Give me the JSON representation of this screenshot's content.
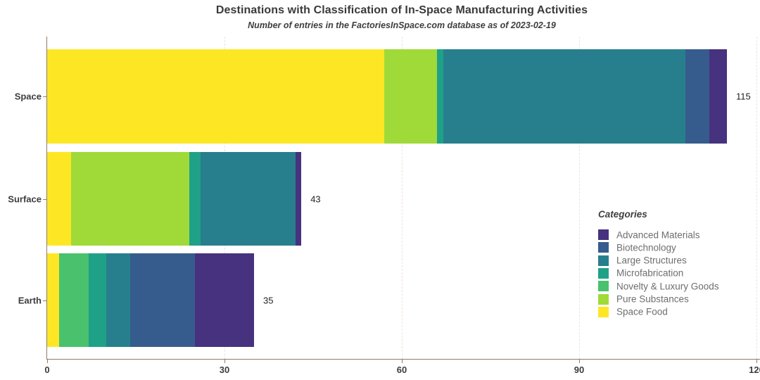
{
  "title": "Destinations with Classification of In-Space Manufacturing Activities",
  "subtitle": "Number of entries in the FactoriesInSpace.com database as of 2023-02-19",
  "legend": {
    "title": "Categories",
    "position": "right-inside"
  },
  "colors": {
    "background": "#ffffff",
    "axis_line": "#8c7b6e",
    "gridline": "#efe3d9",
    "title_text": "#3a3a3a",
    "axis_text": "#3d3d3d",
    "legend_text": "#6e6e6e",
    "value_text": "#1f1f1f"
  },
  "chart_data": {
    "type": "bar",
    "orientation": "horizontal",
    "stacked": true,
    "title": "Destinations with Classification of In-Space Manufacturing Activities",
    "subtitle": "Number of entries in the FactoriesInSpace.com database as of 2023-02-19",
    "categories": [
      "Space",
      "Surface",
      "Earth"
    ],
    "totals": [
      115,
      43,
      35
    ],
    "series": [
      {
        "name": "Advanced Materials",
        "color": "#46327E",
        "values": [
          3,
          1,
          10
        ]
      },
      {
        "name": "Biotechnology",
        "color": "#365C8D",
        "values": [
          4,
          0,
          11
        ]
      },
      {
        "name": "Large Structures",
        "color": "#277F8E",
        "values": [
          41,
          16,
          4
        ]
      },
      {
        "name": "Microfabrication",
        "color": "#1FA187",
        "values": [
          1,
          2,
          3
        ]
      },
      {
        "name": "Novelty & Luxury Goods",
        "color": "#4AC16D",
        "values": [
          0,
          0,
          5
        ]
      },
      {
        "name": "Pure Substances",
        "color": "#A0DA39",
        "values": [
          9,
          20,
          0
        ]
      },
      {
        "name": "Space Food",
        "color": "#FDE725",
        "values": [
          57,
          4,
          2
        ]
      }
    ],
    "stack_order_left_to_right": [
      "Space Food",
      "Pure Substances",
      "Novelty & Luxury Goods",
      "Microfabrication",
      "Large Structures",
      "Biotechnology",
      "Advanced Materials"
    ],
    "x_ticks": [
      0,
      30,
      60,
      90,
      120
    ],
    "xlim": [
      0,
      120
    ],
    "xlabel": "",
    "ylabel": "",
    "grid": "vertical-major-dashed",
    "legend_title": "Categories",
    "legend_entries": [
      "Advanced Materials",
      "Biotechnology",
      "Large Structures",
      "Microfabrication",
      "Novelty & Luxury Goods",
      "Pure Substances",
      "Space Food"
    ]
  }
}
